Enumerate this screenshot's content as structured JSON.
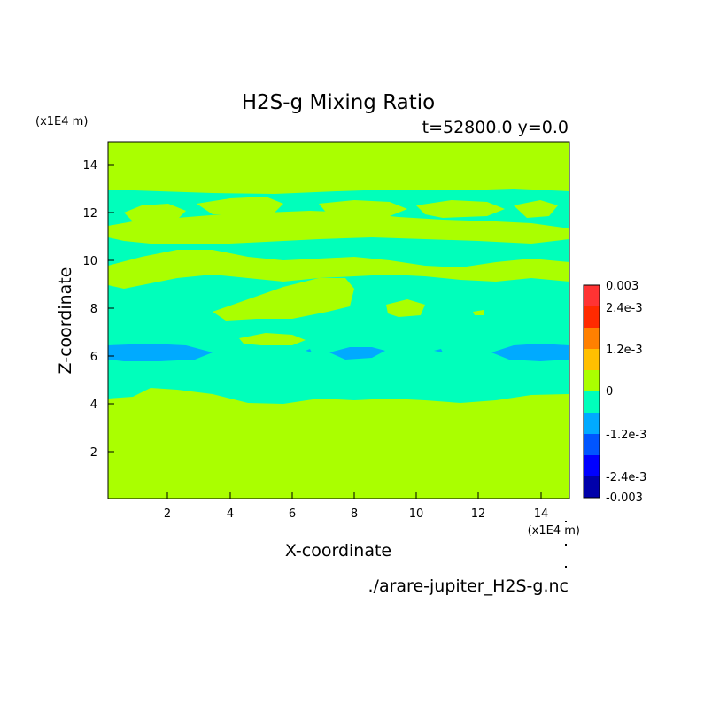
{
  "chart_data": {
    "type": "heatmap",
    "title": "H2S-g Mixing Ratio",
    "subtitle": "t=52800.0 y=0.0",
    "xlabel": "X-coordinate",
    "ylabel": "Z-coordinate",
    "x_unit": "(x1E4 m)",
    "y_unit": "(x1E4 m)",
    "xlim": [
      0,
      14.8
    ],
    "ylim": [
      0,
      14.8
    ],
    "xticks": [
      "2",
      "4",
      "6",
      "8",
      "10",
      "12",
      "14"
    ],
    "yticks": [
      "2",
      "4",
      "6",
      "8",
      "10",
      "12",
      "14"
    ],
    "source_label": "./arare-jupiter_H2S-g.nc",
    "colorbar": {
      "ticks": [
        "0.003",
        "2.4e-3",
        "1.2e-3",
        "0",
        "-1.2e-3",
        "-2.4e-3",
        "-0.003"
      ],
      "colors": [
        "#ff3333",
        "#ff2a00",
        "#ff8000",
        "#ffbf00",
        "#aaff00",
        "#00ffbb",
        "#00aaff",
        "#0055ff",
        "#0000ff",
        "#0000aa"
      ]
    },
    "field_colors": {
      "zero": "#aaff00",
      "negative_small": "#00ffbb",
      "negative_medium": "#00aaff"
    }
  }
}
